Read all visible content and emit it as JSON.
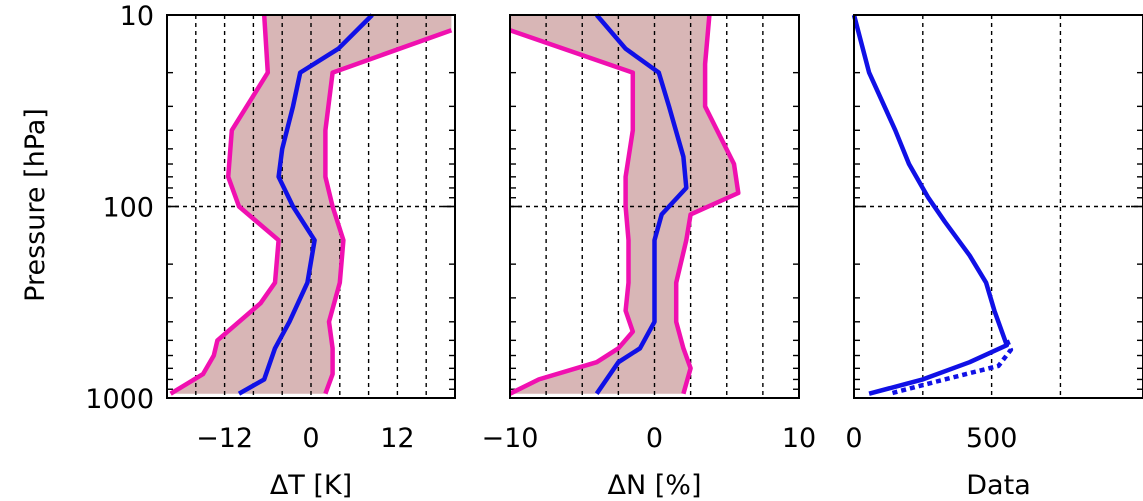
{
  "chart_data": [
    {
      "type": "line",
      "xlabel": "ΔT [K]",
      "ylabel": "Pressure [hPa]",
      "xlim": [
        -20,
        20
      ],
      "ylim": [
        1000,
        10
      ],
      "ylog": true,
      "grid": true,
      "xticks": [
        -12,
        0,
        12
      ],
      "xtick_labels": [
        "−12",
        "0",
        "12"
      ],
      "yticks": [
        10,
        100,
        1000
      ],
      "ytick_labels": [
        "10",
        "100",
        "1000"
      ],
      "colors": {
        "mean": "#1010e6",
        "bounds": "#f010b0",
        "band": "#d8b6b6"
      },
      "series": [
        {
          "role": "mean",
          "points": [
            [
              8.5,
              10
            ],
            [
              3.8,
              15
            ],
            [
              -1.5,
              20
            ],
            [
              -2.5,
              30
            ],
            [
              -4,
              50
            ],
            [
              -4.5,
              70
            ],
            [
              -2.5,
              100
            ],
            [
              0.5,
              150
            ],
            [
              -0.5,
              250
            ],
            [
              -3,
              400
            ],
            [
              -5,
              550
            ],
            [
              -6.5,
              800
            ],
            [
              -10,
              950
            ]
          ]
        },
        {
          "role": "lower",
          "points": [
            [
              -6.5,
              10
            ],
            [
              -6,
              20
            ],
            [
              -11,
              40
            ],
            [
              -11.5,
              70
            ],
            [
              -10,
              100
            ],
            [
              -4.5,
              150
            ],
            [
              -5,
              250
            ],
            [
              -7,
              320
            ],
            [
              -13,
              500
            ],
            [
              -13.5,
              600
            ],
            [
              -15,
              750
            ],
            [
              -19.5,
              950
            ]
          ]
        },
        {
          "role": "upper",
          "points": [
            [
              19.5,
              12
            ],
            [
              3,
              20
            ],
            [
              2,
              40
            ],
            [
              2,
              70
            ],
            [
              3,
              100
            ],
            [
              4.5,
              150
            ],
            [
              4,
              250
            ],
            [
              2.5,
              400
            ],
            [
              3,
              550
            ],
            [
              3,
              750
            ],
            [
              2,
              950
            ]
          ]
        }
      ]
    },
    {
      "type": "line",
      "xlabel": "ΔN [%]",
      "xlim": [
        -10,
        10
      ],
      "ylim": [
        1000,
        10
      ],
      "ylog": true,
      "grid": true,
      "xticks": [
        -10,
        0,
        10
      ],
      "xtick_labels": [
        "−10",
        "0",
        "10"
      ],
      "colors": {
        "mean": "#1010e6",
        "bounds": "#f010b0",
        "band": "#d8b6b6"
      },
      "series": [
        {
          "role": "mean",
          "points": [
            [
              -4,
              10
            ],
            [
              -2,
              15
            ],
            [
              0.3,
              20
            ],
            [
              1,
              30
            ],
            [
              2,
              55
            ],
            [
              2.2,
              80
            ],
            [
              0.5,
              110
            ],
            [
              0,
              150
            ],
            [
              0,
              250
            ],
            [
              0,
              400
            ],
            [
              -1,
              550
            ],
            [
              -2.5,
              650
            ],
            [
              -4,
              950
            ]
          ]
        },
        {
          "role": "lower",
          "points": [
            [
              -10,
              12
            ],
            [
              -1.5,
              20
            ],
            [
              -1.5,
              40
            ],
            [
              -2,
              70
            ],
            [
              -2,
              100
            ],
            [
              -1.8,
              150
            ],
            [
              -1.8,
              250
            ],
            [
              -2,
              350
            ],
            [
              -1.5,
              450
            ],
            [
              -2.5,
              550
            ],
            [
              -4,
              650
            ],
            [
              -8,
              800
            ],
            [
              -10,
              950
            ]
          ]
        },
        {
          "role": "upper",
          "points": [
            [
              3.8,
              10
            ],
            [
              3.5,
              18
            ],
            [
              3.5,
              30
            ],
            [
              5.5,
              60
            ],
            [
              5.8,
              85
            ],
            [
              2.5,
              110
            ],
            [
              2.2,
              150
            ],
            [
              1.5,
              250
            ],
            [
              1.5,
              400
            ],
            [
              2,
              550
            ],
            [
              2.5,
              700
            ],
            [
              2,
              950
            ]
          ]
        }
      ]
    },
    {
      "type": "line",
      "xlabel": "Data",
      "xlim": [
        0,
        1050
      ],
      "ylim": [
        1000,
        10
      ],
      "ylog": true,
      "grid": true,
      "xticks": [
        0,
        500
      ],
      "xtick_labels": [
        "0",
        "500"
      ],
      "colors": {
        "line": "#1010e6"
      },
      "series": [
        {
          "style": "solid",
          "points": [
            [
              0,
              10
            ],
            [
              55,
              20
            ],
            [
              150,
              40
            ],
            [
              200,
              60
            ],
            [
              270,
              90
            ],
            [
              330,
              120
            ],
            [
              420,
              180
            ],
            [
              480,
              250
            ],
            [
              510,
              350
            ],
            [
              555,
              530
            ],
            [
              420,
              650
            ],
            [
              250,
              800
            ],
            [
              55,
              950
            ]
          ]
        },
        {
          "style": "dotted",
          "points": [
            [
              555,
              500
            ],
            [
              570,
              560
            ],
            [
              525,
              680
            ],
            [
              300,
              820
            ],
            [
              130,
              950
            ]
          ]
        }
      ]
    }
  ]
}
